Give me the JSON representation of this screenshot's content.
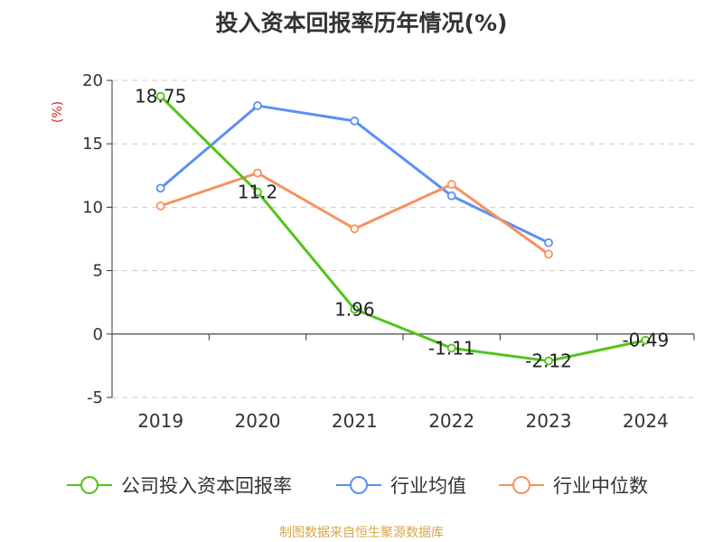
{
  "chart_data": {
    "type": "line",
    "title": "投入资本回报率历年情况(%)",
    "ylabel": "(%)",
    "xlabel": "",
    "categories": [
      "2019",
      "2020",
      "2021",
      "2022",
      "2023",
      "2024"
    ],
    "ylim": [
      -5,
      20
    ],
    "yticks": [
      20,
      15,
      10,
      5,
      0,
      -5
    ],
    "grid": true,
    "legend_position": "bottom",
    "series": [
      {
        "name": "公司投入资本回报率",
        "color": "#52c41a",
        "values": [
          18.75,
          11.2,
          1.96,
          -1.11,
          -2.12,
          -0.49
        ],
        "labels": [
          "18.75",
          "11.2",
          "1.96",
          "-1.11",
          "-2.12",
          "-0.49"
        ]
      },
      {
        "name": "行业均值",
        "color": "#5b8ff9",
        "values": [
          11.5,
          18.0,
          16.8,
          10.9,
          7.2,
          null
        ]
      },
      {
        "name": "行业中位数",
        "color": "#f6925d",
        "values": [
          10.1,
          12.7,
          8.3,
          11.8,
          6.3,
          null
        ]
      }
    ]
  },
  "source": {
    "text": "制图数据来自恒生聚源数据库",
    "color": "#d4a84b"
  },
  "ylabel_color": "#e02020"
}
